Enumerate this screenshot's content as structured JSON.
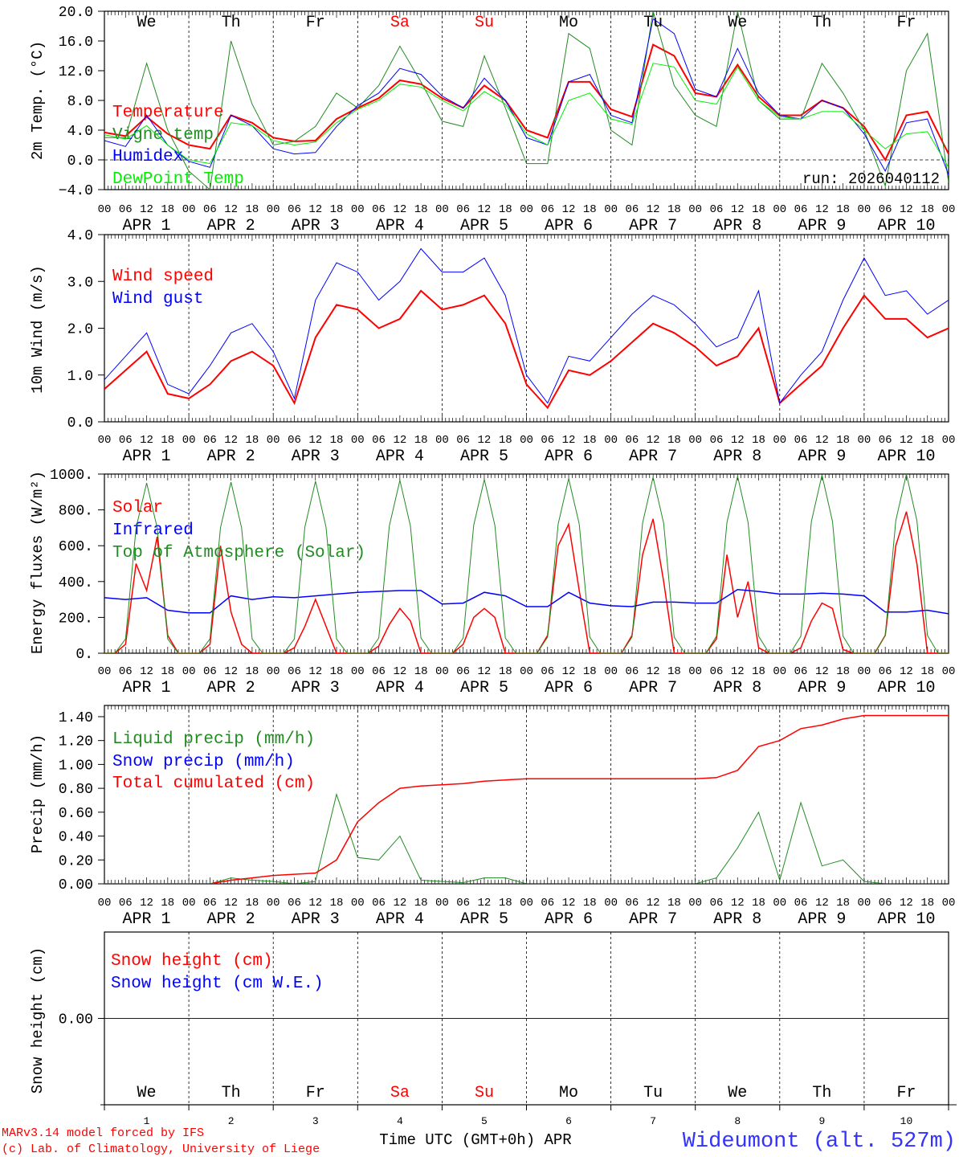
{
  "x_hour_labels": [
    "00",
    "06",
    "12",
    "18"
  ],
  "day_labels": [
    "APR  1",
    "APR  2",
    "APR  3",
    "APR  4",
    "APR  5",
    "APR  6",
    "APR  7",
    "APR  8",
    "APR  9",
    "APR 10"
  ],
  "day_numbers": [
    "1",
    "2",
    "3",
    "4",
    "5",
    "6",
    "7",
    "8",
    "9",
    "10"
  ],
  "weekdays": [
    {
      "label": "We",
      "color": "#000000"
    },
    {
      "label": "Th",
      "color": "#000000"
    },
    {
      "label": "Fr",
      "color": "#000000"
    },
    {
      "label": "Sa",
      "color": "#ff0000"
    },
    {
      "label": "Su",
      "color": "#ff0000"
    },
    {
      "label": "Mo",
      "color": "#000000"
    },
    {
      "label": "Tu",
      "color": "#000000"
    },
    {
      "label": "We",
      "color": "#000000"
    },
    {
      "label": "Th",
      "color": "#000000"
    },
    {
      "label": "Fr",
      "color": "#000000"
    }
  ],
  "footer": {
    "model": "MARv3.14 model forced by IFS",
    "credit": "(c) Lab. of Climatology, University of Liege",
    "xlabel": "Time UTC (GMT+0h) APR",
    "station": "Wideumont (alt. 527m)"
  },
  "chart_data": [
    {
      "type": "line",
      "id": "temp",
      "ylabel": "2m Temp. (°C)",
      "ylim": [
        -4,
        20
      ],
      "yticks": [
        {
          "v": 20,
          "t": "20.0"
        },
        {
          "v": 16,
          "t": "16.0"
        },
        {
          "v": 12,
          "t": "12.0"
        },
        {
          "v": 8,
          "t": "8.0"
        },
        {
          "v": 4,
          "t": "4.0"
        },
        {
          "v": 0,
          "t": "0.0"
        },
        {
          "v": -4,
          "t": "−4.0"
        }
      ],
      "zero_line": true,
      "annotation": "run: 2026040112",
      "x_step_hours": 6,
      "series": [
        {
          "name": "Temperature",
          "color": "#ff0000",
          "width": 2,
          "values": [
            3.7,
            3.2,
            5.8,
            3.5,
            2.0,
            1.5,
            6.0,
            5.0,
            3.0,
            2.5,
            2.6,
            5.5,
            7.0,
            8.3,
            10.7,
            10.2,
            8.3,
            7.0,
            10.0,
            8.0,
            4.0,
            3.0,
            10.5,
            10.5,
            6.8,
            5.8,
            15.5,
            14.0,
            9.0,
            8.5,
            12.8,
            8.5,
            6.0,
            6.0,
            8.0,
            7.0,
            4.5,
            0.0,
            6.0,
            6.5,
            0.8
          ]
        },
        {
          "name": "Vigne temp",
          "color": "#228b22",
          "width": 1,
          "values": [
            3.0,
            3.0,
            13.0,
            4.0,
            -1.5,
            -4.0,
            16.0,
            7.5,
            2.0,
            2.5,
            4.5,
            9.0,
            7.0,
            10.0,
            15.3,
            10.5,
            5.2,
            4.5,
            14.0,
            7.0,
            -0.5,
            -0.5,
            17.0,
            15.0,
            4.0,
            2.0,
            20.0,
            10.0,
            6.0,
            4.5,
            20.0,
            8.0,
            5.5,
            5.5,
            13.0,
            9.0,
            4.0,
            -3.5,
            12.0,
            17.0,
            -3.0
          ]
        },
        {
          "name": "Humidex",
          "color": "#0000ff",
          "width": 1,
          "values": [
            2.6,
            1.8,
            6.0,
            2.0,
            -0.2,
            -1.0,
            6.0,
            4.6,
            1.5,
            0.8,
            1.0,
            4.5,
            7.3,
            9.0,
            12.3,
            11.5,
            8.6,
            7.0,
            11.0,
            8.0,
            3.0,
            2.0,
            10.5,
            11.5,
            6.0,
            5.0,
            19.0,
            17.0,
            9.5,
            8.5,
            15.0,
            9.0,
            6.0,
            5.5,
            8.0,
            7.0,
            3.5,
            -1.5,
            5.0,
            5.5,
            -2.0
          ]
        },
        {
          "name": "DewPoint Temp",
          "color": "#00ee00",
          "width": 1,
          "values": [
            3.4,
            2.8,
            4.6,
            2.0,
            0.0,
            -0.5,
            5.0,
            4.6,
            2.6,
            2.0,
            2.4,
            5.0,
            6.8,
            8.0,
            10.2,
            9.8,
            8.0,
            6.6,
            9.2,
            7.5,
            3.5,
            2.0,
            8.0,
            9.0,
            5.5,
            4.8,
            13.0,
            12.5,
            8.0,
            7.5,
            12.5,
            8.0,
            5.8,
            5.5,
            6.5,
            6.5,
            4.0,
            1.5,
            3.5,
            3.8,
            -1.0
          ]
        }
      ]
    },
    {
      "type": "line",
      "id": "wind",
      "ylabel": "10m Wind (m/s)",
      "ylim": [
        0,
        4
      ],
      "yticks": [
        {
          "v": 4,
          "t": "4.0"
        },
        {
          "v": 3,
          "t": "3.0"
        },
        {
          "v": 2,
          "t": "2.0"
        },
        {
          "v": 1,
          "t": "1.0"
        },
        {
          "v": 0,
          "t": "0.0"
        }
      ],
      "x_step_hours": 6,
      "series": [
        {
          "name": "Wind speed",
          "color": "#ff0000",
          "width": 2,
          "values": [
            0.7,
            1.1,
            1.5,
            0.6,
            0.5,
            0.8,
            1.3,
            1.5,
            1.2,
            0.4,
            1.8,
            2.5,
            2.4,
            2.0,
            2.2,
            2.8,
            2.4,
            2.5,
            2.7,
            2.1,
            0.8,
            0.3,
            1.1,
            1.0,
            1.3,
            1.7,
            2.1,
            1.9,
            1.6,
            1.2,
            1.4,
            2.0,
            0.4,
            0.8,
            1.2,
            2.0,
            2.7,
            2.2,
            2.2,
            1.8,
            2.0
          ]
        },
        {
          "name": "Wind gust",
          "color": "#0000ff",
          "width": 1,
          "values": [
            0.9,
            1.4,
            1.9,
            0.8,
            0.6,
            1.2,
            1.9,
            2.1,
            1.5,
            0.5,
            2.6,
            3.4,
            3.2,
            2.6,
            3.0,
            3.7,
            3.2,
            3.2,
            3.5,
            2.7,
            1.0,
            0.4,
            1.4,
            1.3,
            1.8,
            2.3,
            2.7,
            2.5,
            2.1,
            1.6,
            1.8,
            2.8,
            0.4,
            1.0,
            1.5,
            2.6,
            3.5,
            2.7,
            2.8,
            2.3,
            2.6
          ]
        }
      ]
    },
    {
      "type": "line",
      "id": "energy",
      "ylabel": "Energy fluxes (W/m²)",
      "ylim": [
        0,
        1000
      ],
      "yticks": [
        {
          "v": 1000,
          "t": "1000."
        },
        {
          "v": 800,
          "t": "800."
        },
        {
          "v": 600,
          "t": "600."
        },
        {
          "v": 400,
          "t": "400."
        },
        {
          "v": 200,
          "t": "200."
        },
        {
          "v": 0,
          "t": "0."
        }
      ],
      "series": [
        {
          "name": "Solar",
          "color": "#ff0000",
          "width": 1.5,
          "x_step_hours": 3,
          "values": [
            0,
            0,
            50,
            500,
            350,
            650,
            100,
            0,
            0,
            0,
            50,
            600,
            230,
            50,
            0,
            0,
            0,
            0,
            30,
            150,
            300,
            150,
            0,
            0,
            0,
            0,
            40,
            160,
            250,
            180,
            0,
            0,
            0,
            0,
            50,
            200,
            250,
            200,
            0,
            0,
            0,
            0,
            100,
            600,
            720,
            350,
            0,
            0,
            0,
            0,
            100,
            550,
            750,
            400,
            0,
            0,
            0,
            0,
            80,
            550,
            200,
            400,
            30,
            0,
            0,
            0,
            30,
            180,
            280,
            250,
            20,
            0,
            0,
            0,
            100,
            600,
            790,
            500,
            0,
            0,
            0
          ]
        },
        {
          "name": "Infrared",
          "color": "#0000ff",
          "width": 1.5,
          "x_step_hours": 6,
          "values": [
            310,
            300,
            310,
            240,
            225,
            225,
            320,
            300,
            315,
            310,
            320,
            330,
            340,
            345,
            350,
            350,
            275,
            280,
            340,
            320,
            260,
            260,
            340,
            280,
            265,
            260,
            285,
            285,
            280,
            280,
            355,
            345,
            330,
            330,
            335,
            330,
            320,
            230,
            230,
            240,
            220
          ]
        },
        {
          "name": "Top of Atmosphere (Solar)",
          "color": "#228b22",
          "width": 1,
          "x_step_hours": 3,
          "values": [
            0,
            0,
            80,
            700,
            950,
            700,
            80,
            0,
            0,
            0,
            80,
            700,
            955,
            700,
            80,
            0,
            0,
            0,
            80,
            705,
            960,
            705,
            80,
            0,
            0,
            0,
            85,
            710,
            965,
            710,
            85,
            0,
            0,
            0,
            85,
            715,
            970,
            715,
            85,
            0,
            0,
            0,
            90,
            720,
            975,
            720,
            90,
            0,
            0,
            0,
            90,
            725,
            982,
            725,
            90,
            0,
            0,
            0,
            95,
            730,
            988,
            730,
            95,
            0,
            0,
            0,
            95,
            735,
            995,
            735,
            95,
            0,
            0,
            0,
            100,
            740,
            1000,
            740,
            100,
            0,
            0
          ]
        }
      ]
    },
    {
      "type": "line",
      "id": "precip",
      "ylabel": "Precip (mm/h)",
      "ylim": [
        0,
        1.494
      ],
      "yticks": [
        {
          "v": 1.4,
          "t": "1.40"
        },
        {
          "v": 1.2,
          "t": "1.20"
        },
        {
          "v": 1.0,
          "t": "1.00"
        },
        {
          "v": 0.8,
          "t": "0.80"
        },
        {
          "v": 0.6,
          "t": "0.60"
        },
        {
          "v": 0.4,
          "t": "0.40"
        },
        {
          "v": 0.2,
          "t": "0.20"
        },
        {
          "v": 0,
          "t": "0.00"
        }
      ],
      "x_step_hours": 6,
      "series": [
        {
          "name": "Liquid precip (mm/h)",
          "color": "#228b22",
          "width": 1,
          "values": [
            0,
            0,
            0,
            0,
            0,
            0,
            0.05,
            0.03,
            0.02,
            0,
            0.02,
            0.75,
            0.22,
            0.2,
            0.4,
            0.03,
            0.02,
            0.01,
            0.05,
            0.05,
            0,
            0,
            0,
            0,
            0,
            0,
            0,
            0,
            0,
            0.05,
            0.3,
            0.6,
            0.03,
            0.68,
            0.15,
            0.2,
            0.02,
            0,
            0,
            0,
            0
          ]
        },
        {
          "name": "Snow precip (mm/h)",
          "color": "#0000ff",
          "width": 1,
          "values": [
            0,
            0,
            0,
            0,
            0,
            0,
            0,
            0,
            0,
            0,
            0,
            0,
            0,
            0,
            0,
            0,
            0,
            0,
            0,
            0,
            0,
            0,
            0,
            0,
            0,
            0,
            0,
            0,
            0,
            0,
            0,
            0,
            0,
            0,
            0,
            0,
            0,
            0,
            0,
            0,
            0
          ]
        },
        {
          "name": "Total cumulated (cm)",
          "color": "#ff0000",
          "width": 1.5,
          "values": [
            0,
            0,
            0,
            0,
            0,
            0,
            0.03,
            0.05,
            0.07,
            0.08,
            0.09,
            0.2,
            0.52,
            0.68,
            0.8,
            0.82,
            0.83,
            0.84,
            0.86,
            0.87,
            0.88,
            0.88,
            0.88,
            0.88,
            0.88,
            0.88,
            0.88,
            0.88,
            0.88,
            0.89,
            0.95,
            1.15,
            1.2,
            1.3,
            1.33,
            1.38,
            1.41,
            1.41,
            1.41,
            1.41,
            1.41
          ]
        }
      ]
    },
    {
      "type": "line",
      "id": "snow",
      "ylabel": "Snow height (cm)",
      "ylim": [
        -1,
        1
      ],
      "yticks": [
        {
          "v": 0,
          "t": "0.00"
        }
      ],
      "x_step_hours": 6,
      "series": [
        {
          "name": "Snow height (cm)",
          "color": "#ff0000",
          "width": 1,
          "values": [
            0,
            0,
            0,
            0,
            0,
            0,
            0,
            0,
            0,
            0,
            0,
            0,
            0,
            0,
            0,
            0,
            0,
            0,
            0,
            0,
            0,
            0,
            0,
            0,
            0,
            0,
            0,
            0,
            0,
            0,
            0,
            0,
            0,
            0,
            0,
            0,
            0,
            0,
            0,
            0,
            0
          ]
        },
        {
          "name": "Snow height (cm W.E.)",
          "color": "#0000ff",
          "width": 1,
          "values": [
            0,
            0,
            0,
            0,
            0,
            0,
            0,
            0,
            0,
            0,
            0,
            0,
            0,
            0,
            0,
            0,
            0,
            0,
            0,
            0,
            0,
            0,
            0,
            0,
            0,
            0,
            0,
            0,
            0,
            0,
            0,
            0,
            0,
            0,
            0,
            0,
            0,
            0,
            0,
            0,
            0
          ]
        }
      ]
    }
  ]
}
